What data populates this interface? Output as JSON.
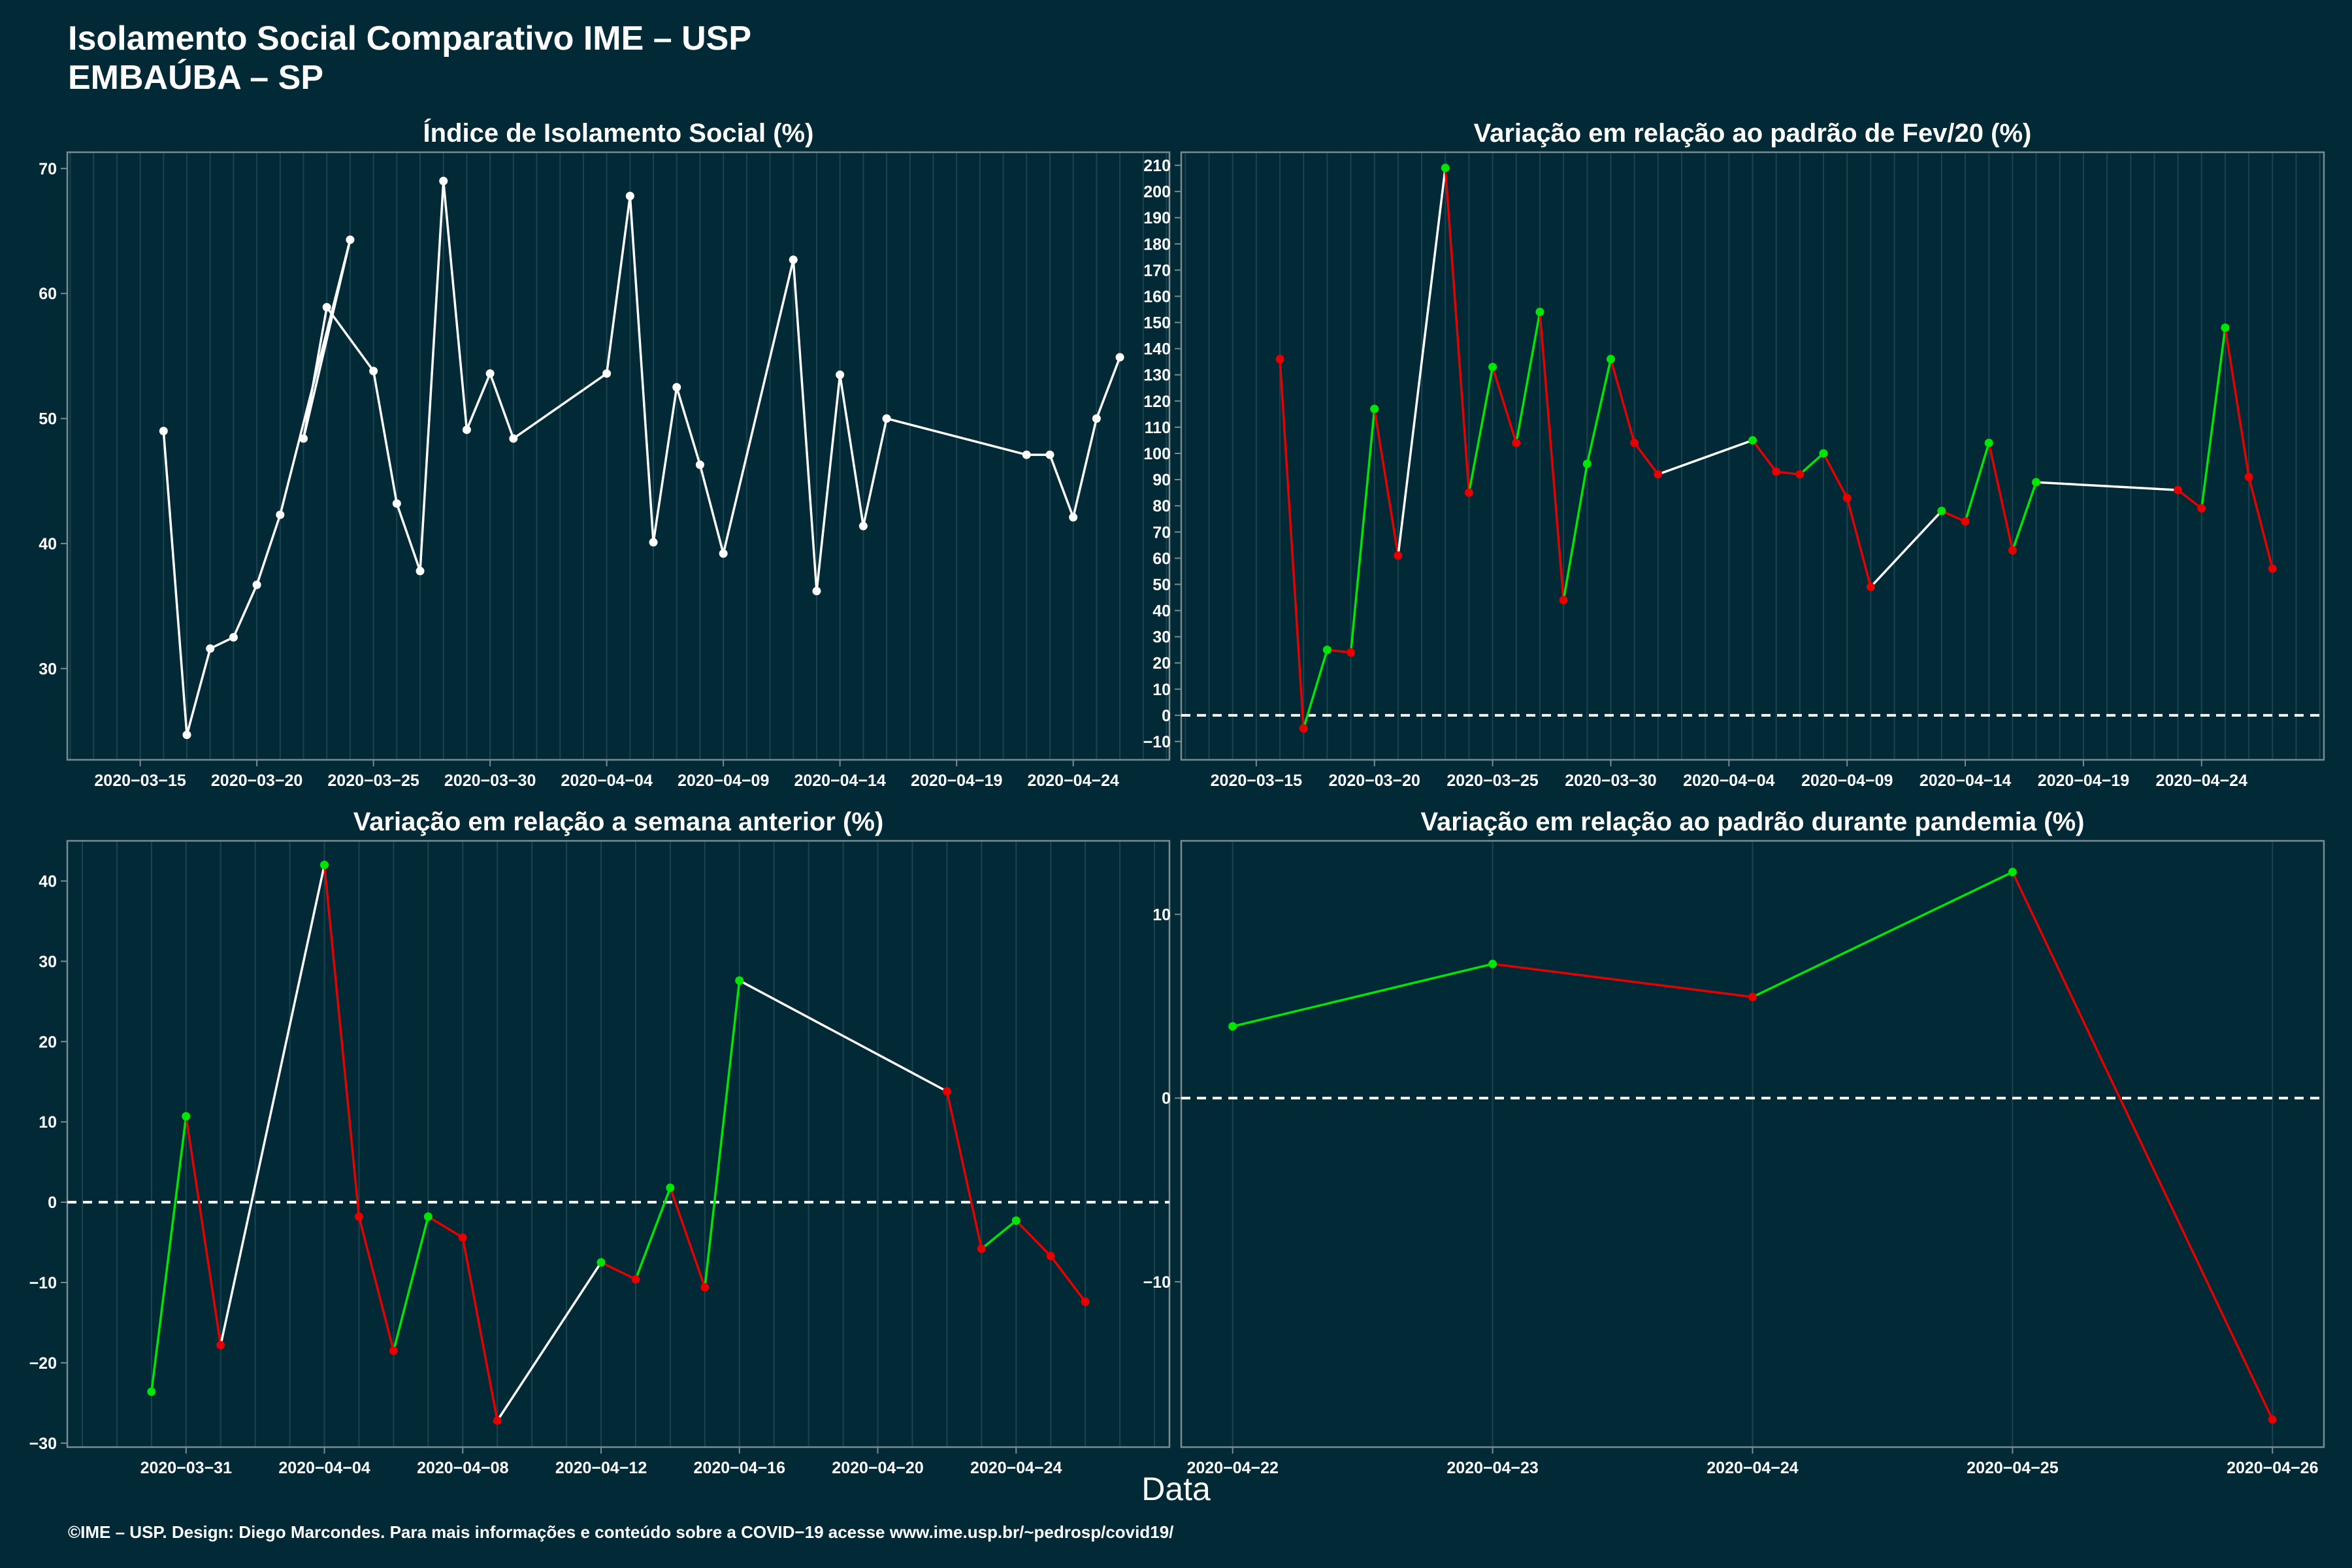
{
  "header": {
    "title_line1": "Isolamento Social Comparativo IME – USP",
    "title_line2": "EMBAÚBA – SP"
  },
  "x_axis_label": "Data",
  "footer": "©IME – USP. Design: Diego Marcondes. Para mais informações e conteúdo sobre a COVID−19 acesse www.ime.usp.br/~pedrosp/covid19/",
  "colors": {
    "background": "#022a36",
    "line_neutral": "#ffffff",
    "line_up": "#00e600",
    "line_down": "#e60000",
    "frame": "#7a8c92",
    "grid": "#1b4450"
  },
  "chart_data": [
    {
      "type": "line",
      "title": "Índice de Isolamento Social (%)",
      "x_ticks": [
        "2020−03−15",
        "2020−03−20",
        "2020−03−25",
        "2020−03−30",
        "2020−04−04",
        "2020−04−09",
        "2020−04−14",
        "2020−04−19",
        "2020−04−24"
      ],
      "y_ticks": [
        "30",
        "40",
        "50",
        "60",
        "70"
      ],
      "xlim": [
        "2020-03-14",
        "2020-04-26"
      ],
      "ylim": [
        22.7,
        71.3
      ],
      "reference_line": null,
      "series": [
        {
          "points": [
            [
              "2020-03-16",
              49
            ],
            [
              "2020-03-17",
              24.7
            ],
            [
              "2020-03-18",
              31.6
            ],
            [
              "2020-03-19",
              32.5
            ],
            [
              "2020-03-20",
              36.7
            ],
            [
              "2020-03-21",
              42.3
            ],
            [
              "2020-03-24",
              64.3
            ],
            [
              "2020-03-22",
              48.4
            ],
            [
              "2020-03-23",
              58.9
            ],
            [
              "2020-03-25",
              53.8
            ],
            [
              "2020-03-26",
              43.2
            ],
            [
              "2020-03-27",
              37.8
            ],
            [
              "2020-03-28",
              69
            ],
            [
              "2020-03-29",
              49.1
            ],
            [
              "2020-03-30",
              53.6
            ],
            [
              "2020-03-31",
              48.4
            ],
            [
              "2020-04-04",
              53.6
            ],
            [
              "2020-04-05",
              67.8
            ],
            [
              "2020-04-06",
              40.1
            ],
            [
              "2020-04-07",
              52.5
            ],
            [
              "2020-04-08",
              46.3
            ],
            [
              "2020-04-09",
              39.2
            ],
            [
              "2020-04-12",
              62.7
            ],
            [
              "2020-04-13",
              36.2
            ],
            [
              "2020-04-14",
              53.5
            ],
            [
              "2020-04-15",
              41.4
            ],
            [
              "2020-04-16",
              50
            ],
            [
              "2020-04-22",
              47.1
            ],
            [
              "2020-04-23",
              47.1
            ],
            [
              "2020-04-24",
              42.1
            ],
            [
              "2020-04-25",
              50
            ],
            [
              "2020-04-26",
              54.9
            ]
          ]
        }
      ]
    },
    {
      "type": "line",
      "title": "Variação em relação ao padrão de Fev/20 (%)",
      "x_ticks": [
        "2020−03−15",
        "2020−03−20",
        "2020−03−25",
        "2020−03−30",
        "2020−04−04",
        "2020−04−09",
        "2020−04−14",
        "2020−04−19",
        "2020−04−24"
      ],
      "y_ticks": [
        "−10",
        "0",
        "10",
        "20",
        "30",
        "40",
        "50",
        "60",
        "70",
        "80",
        "90",
        "100",
        "110",
        "120",
        "130",
        "140",
        "150",
        "160",
        "170",
        "180",
        "190",
        "200",
        "210"
      ],
      "xlim": [
        "2020-03-14",
        "2020-04-27"
      ],
      "ylim": [
        -17,
        215
      ],
      "reference_line": 0,
      "series": [
        {
          "points": [
            [
              "2020-03-16",
              136
            ],
            [
              "2020-03-17",
              -5
            ],
            [
              "2020-03-18",
              25
            ],
            [
              "2020-03-19",
              24
            ],
            [
              "2020-03-20",
              117
            ],
            [
              "2020-03-21",
              61
            ],
            [
              "2020-03-23",
              209
            ],
            [
              "2020-03-24",
              85
            ],
            [
              "2020-03-25",
              133
            ],
            [
              "2020-03-26",
              104
            ],
            [
              "2020-03-27",
              154
            ],
            [
              "2020-03-28",
              44
            ],
            [
              "2020-03-29",
              96
            ],
            [
              "2020-03-30",
              136
            ],
            [
              "2020-03-31",
              104
            ],
            [
              "2020-04-01",
              92
            ],
            [
              "2020-04-05",
              105
            ],
            [
              "2020-04-06",
              93
            ],
            [
              "2020-04-07",
              92
            ],
            [
              "2020-04-08",
              100
            ],
            [
              "2020-04-09",
              83
            ],
            [
              "2020-04-10",
              49
            ],
            [
              "2020-04-13",
              78
            ],
            [
              "2020-04-14",
              74
            ],
            [
              "2020-04-15",
              104
            ],
            [
              "2020-04-16",
              63
            ],
            [
              "2020-04-17",
              89
            ],
            [
              "2020-04-23",
              86
            ],
            [
              "2020-04-24",
              79
            ],
            [
              "2020-04-25",
              148
            ],
            [
              "2020-04-26",
              91
            ],
            [
              "2020-04-27",
              56
            ]
          ]
        }
      ]
    },
    {
      "type": "line",
      "title": "Variação em relação a semana anterior (%)",
      "x_ticks": [
        "2020−03−31",
        "2020−04−04",
        "2020−04−08",
        "2020−04−12",
        "2020−04−16",
        "2020−04−20",
        "2020−04−24"
      ],
      "y_ticks": [
        "−30",
        "−20",
        "−10",
        "0",
        "10",
        "20",
        "30",
        "40"
      ],
      "xlim": [
        "2020-03-29",
        "2020-04-27"
      ],
      "ylim": [
        -30.5,
        45
      ],
      "reference_line": 0,
      "series": [
        {
          "points": [
            [
              "2020-03-30",
              -23.6
            ],
            [
              "2020-03-31",
              10.7
            ],
            [
              "2020-04-01",
              -17.8
            ],
            [
              "2020-04-04",
              42
            ],
            [
              "2020-04-05",
              -1.8
            ],
            [
              "2020-04-06",
              -18.5
            ],
            [
              "2020-04-07",
              -1.8
            ],
            [
              "2020-04-08",
              -4.4
            ],
            [
              "2020-04-09",
              -27.2
            ],
            [
              "2020-04-12",
              -7.5
            ],
            [
              "2020-04-13",
              -9.6
            ],
            [
              "2020-04-14",
              1.8
            ],
            [
              "2020-04-15",
              -10.6
            ],
            [
              "2020-04-16",
              27.6
            ],
            [
              "2020-04-22",
              13.8
            ],
            [
              "2020-04-23",
              -5.8
            ],
            [
              "2020-04-24",
              -2.3
            ],
            [
              "2020-04-25",
              -6.7
            ],
            [
              "2020-04-26",
              -12.4
            ]
          ]
        }
      ]
    },
    {
      "type": "line",
      "title": "Variação em relação ao padrão durante pandemia (%)",
      "x_ticks": [
        "2020−04−22",
        "2020−04−23",
        "2020−04−24",
        "2020−04−25",
        "2020−04−26"
      ],
      "y_ticks": [
        "−10",
        "0",
        "10"
      ],
      "xlim": [
        "2020-04-22",
        "2020-04-26"
      ],
      "ylim": [
        -19,
        14
      ],
      "reference_line": 0,
      "series": [
        {
          "points": [
            [
              "2020-04-22",
              3.9
            ],
            [
              "2020-04-23",
              7.3
            ],
            [
              "2020-04-24",
              5.5
            ],
            [
              "2020-04-25",
              12.3
            ],
            [
              "2020-04-26",
              -17.5
            ]
          ]
        }
      ]
    }
  ]
}
